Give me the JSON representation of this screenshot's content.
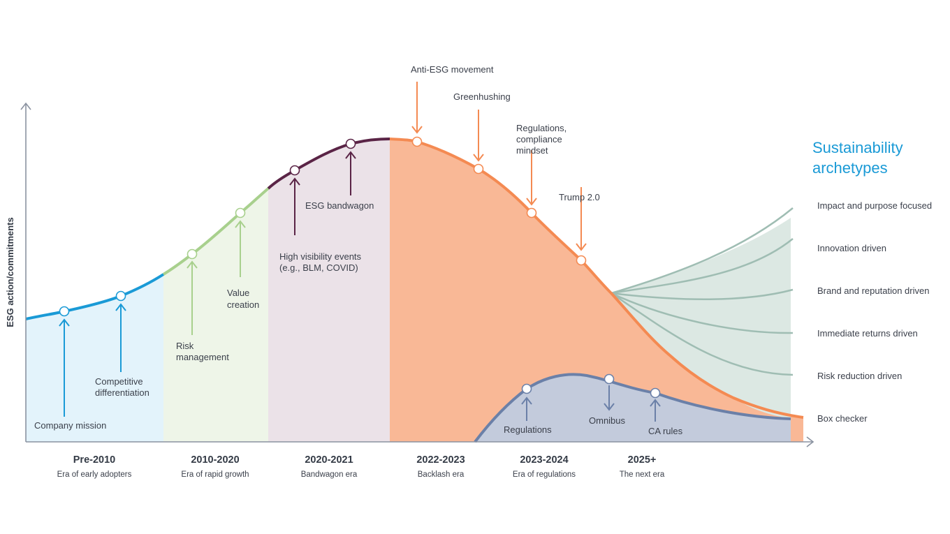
{
  "y_axis_label": "ESG action/commitments",
  "title": [
    "Sustainability",
    "archetypes"
  ],
  "colors": {
    "blue": "#1a9ad6",
    "green": "#a8d08d",
    "purple": "#5a2446",
    "orange": "#f48a52",
    "slate": "#6b80a8",
    "archetype": "#9fbdb3",
    "title": "#1a9ad6"
  },
  "eras": [
    {
      "name": "Pre-2010",
      "subtitle": "Era of early adopters"
    },
    {
      "name": "2010-2020",
      "subtitle": "Era of rapid growth"
    },
    {
      "name": "2020-2021",
      "subtitle": "Bandwagon era"
    },
    {
      "name": "2022-2023",
      "subtitle": "Backlash era"
    },
    {
      "name": "2023-2024",
      "subtitle": "Era of regulations"
    },
    {
      "name": "2025+",
      "subtitle": "The next era"
    }
  ],
  "milestones": {
    "company_mission": "Company mission",
    "competitive": [
      "Competitive",
      "differentiation"
    ],
    "risk_mgmt": [
      "Risk",
      "management"
    ],
    "value_creation": [
      "Value",
      "creation"
    ],
    "high_visibility": [
      "High visibility events",
      "(e.g., BLM, COVID)"
    ],
    "esg_bandwagon": "ESG bandwagon",
    "anti_esg": "Anti-ESG movement",
    "greenhushing": "Greenhushing",
    "regs_compliance": [
      "Regulations,",
      "compliance",
      "mindset"
    ],
    "trump": "Trump 2.0",
    "regulations": "Regulations",
    "omnibus": "Omnibus",
    "ca_rules": "CA rules"
  },
  "archetypes": [
    "Impact and purpose focused",
    "Innovation driven",
    "Brand and reputation driven",
    "Immediate returns driven",
    "Risk reduction driven",
    "Box checker"
  ]
}
